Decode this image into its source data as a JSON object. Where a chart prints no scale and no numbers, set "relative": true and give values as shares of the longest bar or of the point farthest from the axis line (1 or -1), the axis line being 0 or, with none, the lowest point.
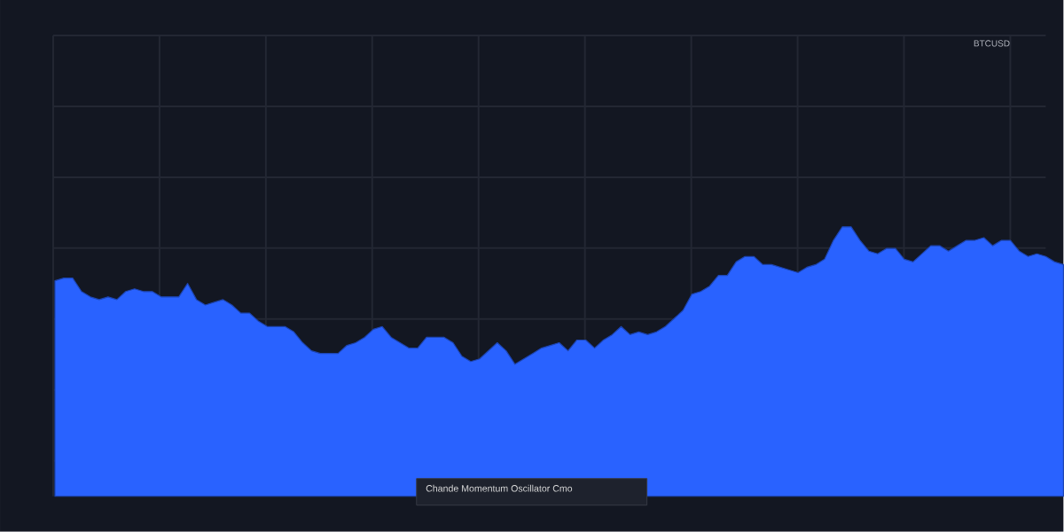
{
  "chart_data": {
    "type": "area",
    "relative": true,
    "grid": true,
    "color": "#2962ff",
    "annotations": [
      "BTCUSD",
      "Chande Momentum Oscillator Cmo"
    ],
    "categories": [
      null,
      null,
      null,
      null,
      null,
      null,
      null,
      null,
      null,
      null,
      null,
      null,
      null,
      null,
      null,
      null,
      null,
      null,
      null,
      null,
      null,
      null,
      null,
      null,
      null,
      null,
      null,
      null,
      null,
      null,
      null,
      null,
      null,
      null,
      null,
      null,
      null,
      null,
      null,
      null,
      null,
      null,
      null,
      null,
      null,
      null,
      null,
      null,
      null,
      null,
      null,
      null,
      null,
      null,
      null,
      null,
      null,
      null,
      null,
      null,
      null,
      null,
      null,
      null,
      null,
      null,
      null,
      null,
      null,
      null,
      null,
      null,
      null,
      null,
      null,
      null,
      null,
      null,
      null,
      null,
      null,
      null,
      null,
      null,
      null,
      null,
      null,
      null,
      null,
      null,
      null,
      null,
      null,
      null,
      null,
      null,
      null,
      null,
      null,
      null,
      null,
      null,
      null,
      null,
      null,
      null,
      null,
      null,
      null,
      null,
      null,
      null,
      null,
      null,
      null
    ],
    "values": [
      0.8,
      0.81,
      0.81,
      0.76,
      0.74,
      0.73,
      0.74,
      0.73,
      0.76,
      0.77,
      0.76,
      0.76,
      0.74,
      0.74,
      0.74,
      0.79,
      0.73,
      0.71,
      0.72,
      0.73,
      0.71,
      0.68,
      0.68,
      0.65,
      0.63,
      0.63,
      0.63,
      0.61,
      0.57,
      0.54,
      0.53,
      0.53,
      0.53,
      0.56,
      0.57,
      0.59,
      0.62,
      0.63,
      0.59,
      0.57,
      0.55,
      0.55,
      0.59,
      0.59,
      0.59,
      0.57,
      0.52,
      0.5,
      0.51,
      0.54,
      0.57,
      0.54,
      0.49,
      0.51,
      0.53,
      0.55,
      0.56,
      0.57,
      0.54,
      0.58,
      0.58,
      0.55,
      0.58,
      0.6,
      0.63,
      0.6,
      0.61,
      0.6,
      0.61,
      0.63,
      0.66,
      0.69,
      0.75,
      0.76,
      0.78,
      0.82,
      0.82,
      0.87,
      0.89,
      0.89,
      0.86,
      0.86,
      0.85,
      0.84,
      0.83,
      0.85,
      0.86,
      0.88,
      0.95,
      1.0,
      1.0,
      0.95,
      0.91,
      0.9,
      0.92,
      0.92,
      0.88,
      0.87,
      0.9,
      0.93,
      0.93,
      0.91,
      0.93,
      0.95,
      0.95,
      0.96,
      0.93,
      0.95,
      0.95,
      0.91,
      0.89,
      0.9,
      0.89,
      0.87,
      0.86
    ]
  }
}
